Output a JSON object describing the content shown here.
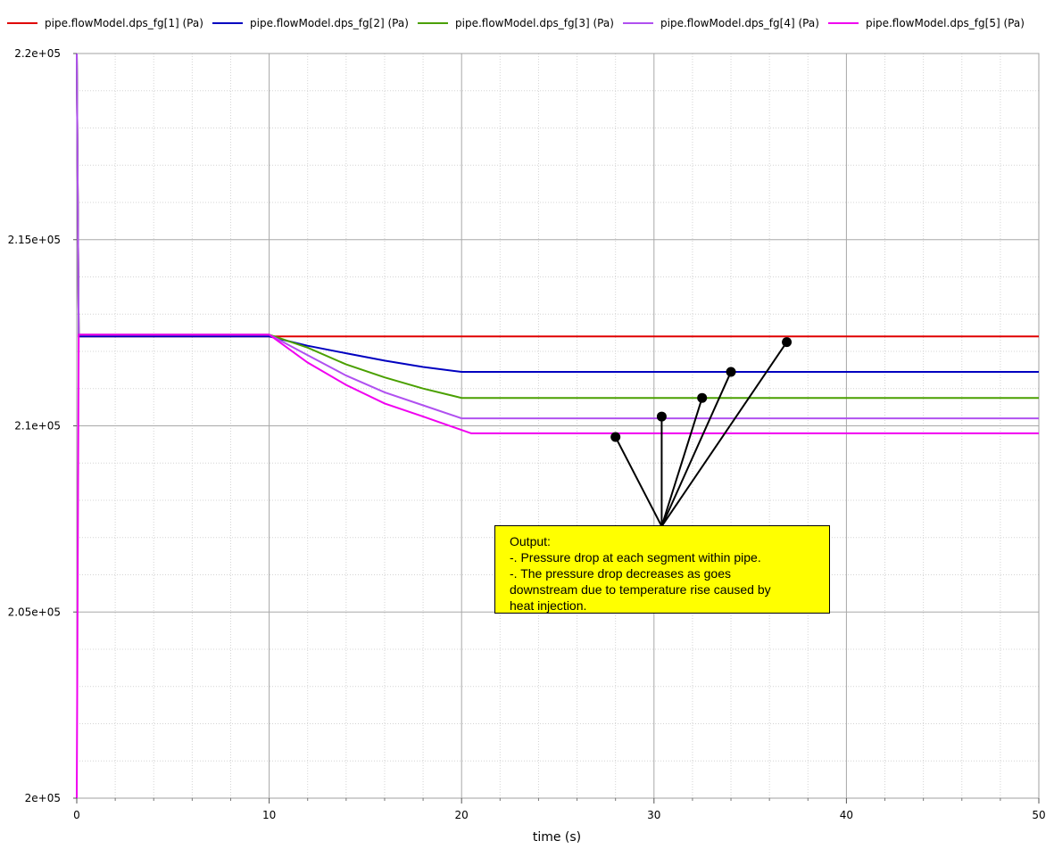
{
  "chart_data": {
    "type": "line",
    "xlabel": "time (s)",
    "ylabel": "",
    "xlim": [
      0,
      50
    ],
    "ylim": [
      200000,
      220000
    ],
    "x_ticks": [
      "0",
      "10",
      "20",
      "30",
      "40",
      "50"
    ],
    "y_ticks": [
      "2e+05",
      "2.05e+05",
      "2.1e+05",
      "2.15e+05",
      "2.2e+05"
    ],
    "grid": true,
    "legend_position": "top",
    "series": [
      {
        "name": "pipe.flowModel.dps_fg[1] (Pa)",
        "color": "#e00000",
        "x": [
          0,
          0.1,
          50
        ],
        "y": [
          220000,
          212400,
          212400
        ]
      },
      {
        "name": "pipe.flowModel.dps_fg[2] (Pa)",
        "color": "#0000c0",
        "x": [
          0,
          0.1,
          10,
          12,
          14,
          16,
          18,
          20,
          50
        ],
        "y": [
          220000,
          212400,
          212400,
          212150,
          211950,
          211750,
          211580,
          211450,
          211450
        ]
      },
      {
        "name": "pipe.flowModel.dps_fg[3] (Pa)",
        "color": "#4aa000",
        "x": [
          0,
          0.1,
          10,
          12,
          14,
          16,
          18,
          20,
          50
        ],
        "y": [
          220000,
          212450,
          212450,
          212100,
          211650,
          211300,
          211000,
          210750,
          210750
        ]
      },
      {
        "name": "pipe.flowModel.dps_fg[4] (Pa)",
        "color": "#b050f0",
        "x": [
          0,
          0.1,
          10,
          12,
          14,
          16,
          18,
          20,
          50
        ],
        "y": [
          220000,
          212450,
          212450,
          211900,
          211350,
          210900,
          210550,
          210200,
          210200
        ]
      },
      {
        "name": "pipe.flowModel.dps_fg[5] (Pa)",
        "color": "#f000f0",
        "x": [
          0,
          0.1,
          10,
          12,
          14,
          16,
          18,
          20.5,
          50
        ],
        "y": [
          200000,
          212450,
          212450,
          211700,
          211100,
          210600,
          210250,
          209800,
          209800
        ]
      }
    ],
    "annotation": {
      "lines": [
        "Output:",
        "-. Pressure drop at each segment within pipe.",
        "-. The pressure drop decreases as goes",
        "downstream due to temperature rise caused by",
        "heat injection."
      ],
      "anchor": {
        "x": 30.4,
        "y": 207300
      },
      "pointers": [
        {
          "x": 28.0,
          "y": 209700
        },
        {
          "x": 30.4,
          "y": 210250
        },
        {
          "x": 32.5,
          "y": 210750
        },
        {
          "x": 34.0,
          "y": 211450
        },
        {
          "x": 36.9,
          "y": 212250
        }
      ]
    }
  }
}
